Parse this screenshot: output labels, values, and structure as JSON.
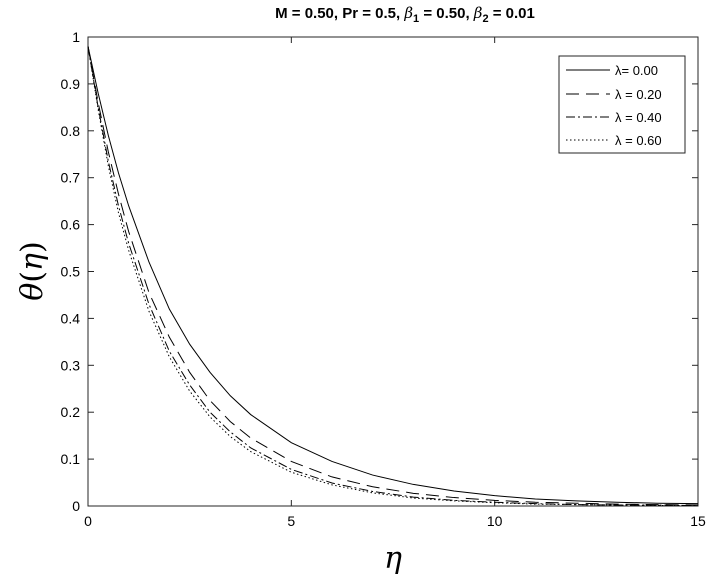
{
  "chart_data": {
    "type": "line",
    "title": {
      "prefix": "M = 0.50, Pr = 0.5, ",
      "beta_symbol": "β",
      "beta1_sub": "1",
      "beta1_value": " = 0.50, ",
      "beta2_sub": "2",
      "beta2_value": " = 0.01"
    },
    "xlabel": "η",
    "ylabel": {
      "theta": "θ",
      "open": "(",
      "eta": "η",
      "close": ")"
    },
    "xlim": [
      0,
      15
    ],
    "ylim": [
      0,
      1
    ],
    "xticks": [
      0,
      5,
      10,
      15
    ],
    "yticks": [
      0,
      0.1,
      0.2,
      0.3,
      0.4,
      0.5,
      0.6,
      0.7,
      0.8,
      0.9,
      1
    ],
    "xtick_labels": [
      "0",
      "5",
      "10",
      "15"
    ],
    "ytick_labels": [
      "0",
      "0.1",
      "0.2",
      "0.3",
      "0.4",
      "0.5",
      "0.6",
      "0.7",
      "0.8",
      "0.9",
      "1"
    ],
    "legend_position": "top-right",
    "line_color": "#000000",
    "series": [
      {
        "name": "λ= 0.00",
        "dash": "solid",
        "x": [
          0,
          0.25,
          0.5,
          0.75,
          1,
          1.5,
          2,
          2.5,
          3,
          3.5,
          4,
          5,
          6,
          7,
          8,
          9,
          10,
          11,
          12,
          13,
          14,
          15
        ],
        "y": [
          0.98,
          0.88,
          0.79,
          0.71,
          0.64,
          0.52,
          0.42,
          0.345,
          0.285,
          0.235,
          0.195,
          0.135,
          0.095,
          0.066,
          0.046,
          0.032,
          0.022,
          0.015,
          0.011,
          0.008,
          0.006,
          0.005
        ]
      },
      {
        "name": "λ = 0.20",
        "dash": "dashed",
        "x": [
          0,
          0.25,
          0.5,
          0.75,
          1,
          1.5,
          2,
          2.5,
          3,
          3.5,
          4,
          5,
          6,
          7,
          8,
          9,
          10,
          11,
          12,
          13,
          14,
          15
        ],
        "y": [
          0.98,
          0.86,
          0.755,
          0.665,
          0.585,
          0.455,
          0.36,
          0.285,
          0.225,
          0.18,
          0.145,
          0.095,
          0.062,
          0.041,
          0.027,
          0.018,
          0.012,
          0.008,
          0.006,
          0.004,
          0.003,
          0.002
        ]
      },
      {
        "name": "λ = 0.40",
        "dash": "dashdot",
        "x": [
          0,
          0.25,
          0.5,
          0.75,
          1,
          1.5,
          2,
          2.5,
          3,
          3.5,
          4,
          5,
          6,
          7,
          8,
          9,
          10,
          11,
          12,
          13,
          14,
          15
        ],
        "y": [
          0.98,
          0.85,
          0.735,
          0.64,
          0.56,
          0.43,
          0.33,
          0.258,
          0.2,
          0.158,
          0.124,
          0.078,
          0.049,
          0.031,
          0.019,
          0.012,
          0.008,
          0.005,
          0.003,
          0.002,
          0.002,
          0.001
        ]
      },
      {
        "name": "λ = 0.60",
        "dash": "dotted",
        "x": [
          0,
          0.25,
          0.5,
          0.75,
          1,
          1.5,
          2,
          2.5,
          3,
          3.5,
          4,
          5,
          6,
          7,
          8,
          9,
          10,
          11,
          12,
          13,
          14,
          15
        ],
        "y": [
          0.98,
          0.845,
          0.725,
          0.625,
          0.545,
          0.415,
          0.318,
          0.245,
          0.19,
          0.148,
          0.116,
          0.072,
          0.045,
          0.028,
          0.017,
          0.011,
          0.007,
          0.004,
          0.003,
          0.002,
          0.001,
          0.001
        ]
      }
    ]
  }
}
